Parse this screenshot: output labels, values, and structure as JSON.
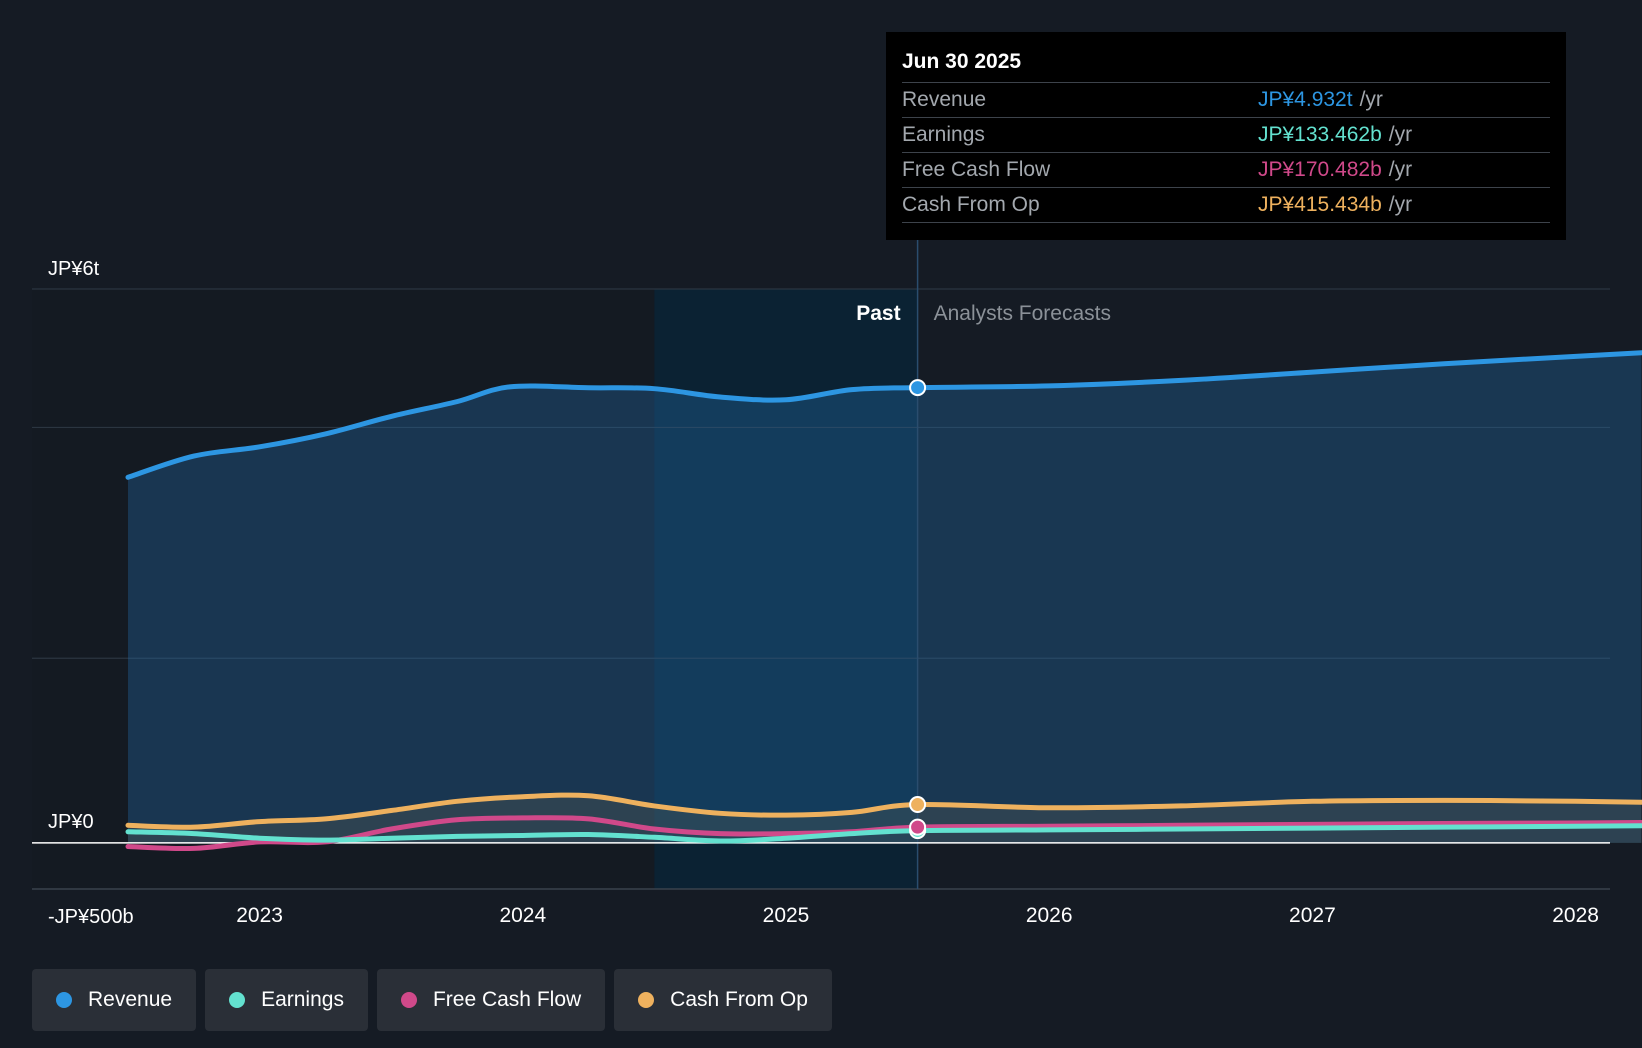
{
  "tooltip": {
    "date": "Jun 30 2025",
    "unit": "/yr",
    "rows": [
      {
        "label": "Revenue",
        "value": "JP¥4.932t",
        "color": "#2d96e2"
      },
      {
        "label": "Earnings",
        "value": "JP¥133.462b",
        "color": "#63e1cf"
      },
      {
        "label": "Free Cash Flow",
        "value": "JP¥170.482b",
        "color": "#d0498a"
      },
      {
        "label": "Cash From Op",
        "value": "JP¥415.434b",
        "color": "#eeb15e"
      }
    ]
  },
  "divider": {
    "past_label": "Past",
    "forecast_label": "Analysts Forecasts"
  },
  "legend": [
    {
      "label": "Revenue",
      "color": "#2d96e2"
    },
    {
      "label": "Earnings",
      "color": "#63e1cf"
    },
    {
      "label": "Free Cash Flow",
      "color": "#d0498a"
    },
    {
      "label": "Cash From Op",
      "color": "#eeb15e"
    }
  ],
  "chart_data": {
    "type": "line",
    "y_unit": "JP¥ billions",
    "ylim": [
      -500,
      6000
    ],
    "y_tick_labels": [
      {
        "value": 6000,
        "label": "JP¥6t"
      },
      {
        "value": 0,
        "label": "JP¥0"
      },
      {
        "value": -500,
        "label": "-JP¥500b"
      }
    ],
    "xlim": [
      2022.25,
      2028.25
    ],
    "x_ticks": [
      2023,
      2024,
      2025,
      2026,
      2027,
      2028
    ],
    "x_tick_labels": [
      "2023",
      "2024",
      "2025",
      "2026",
      "2027",
      "2028"
    ],
    "forecast_start": 2025.5,
    "highlight_start": 2024.5,
    "grid": true,
    "series": [
      {
        "name": "Revenue",
        "color": "#2d96e2",
        "fill": true,
        "x": [
          2022.5,
          2022.75,
          2023.0,
          2023.25,
          2023.5,
          2023.75,
          2023.95,
          2024.25,
          2024.5,
          2024.75,
          2025.0,
          2025.25,
          2025.5,
          2026.0,
          2026.5,
          2027.0,
          2027.5,
          2028.0,
          2028.25
        ],
        "y": [
          3960,
          4190,
          4290,
          4430,
          4620,
          4780,
          4940,
          4930,
          4920,
          4830,
          4800,
          4910,
          4932,
          4950,
          5010,
          5100,
          5190,
          5270,
          5310
        ]
      },
      {
        "name": "Earnings",
        "color": "#63e1cf",
        "fill": false,
        "x": [
          2022.5,
          2022.75,
          2023.0,
          2023.25,
          2023.5,
          2023.75,
          2024.0,
          2024.25,
          2024.5,
          2024.75,
          2025.0,
          2025.25,
          2025.5,
          2026.0,
          2026.5,
          2027.0,
          2027.5,
          2028.0,
          2028.25
        ],
        "y": [
          120,
          100,
          50,
          30,
          50,
          70,
          80,
          90,
          60,
          20,
          50,
          100,
          133,
          140,
          150,
          160,
          170,
          180,
          185
        ]
      },
      {
        "name": "Free Cash Flow",
        "color": "#d0498a",
        "fill": false,
        "x": [
          2022.5,
          2022.75,
          2023.0,
          2023.25,
          2023.5,
          2023.75,
          2024.0,
          2024.25,
          2024.5,
          2024.75,
          2025.0,
          2025.25,
          2025.5,
          2026.0,
          2026.5,
          2027.0,
          2027.5,
          2028.0,
          2028.25
        ],
        "y": [
          -40,
          -60,
          10,
          10,
          150,
          250,
          270,
          260,
          150,
          100,
          100,
          120,
          170,
          180,
          190,
          200,
          210,
          215,
          220
        ]
      },
      {
        "name": "Cash From Op",
        "color": "#eeb15e",
        "fill": true,
        "x": [
          2022.5,
          2022.75,
          2023.0,
          2023.25,
          2023.5,
          2023.75,
          2024.0,
          2024.25,
          2024.5,
          2024.75,
          2025.0,
          2025.25,
          2025.5,
          2026.0,
          2026.5,
          2027.0,
          2027.5,
          2028.0,
          2028.25
        ],
        "y": [
          190,
          170,
          230,
          260,
          350,
          450,
          500,
          510,
          400,
          320,
          300,
          330,
          415,
          380,
          400,
          450,
          460,
          450,
          440
        ]
      }
    ]
  }
}
